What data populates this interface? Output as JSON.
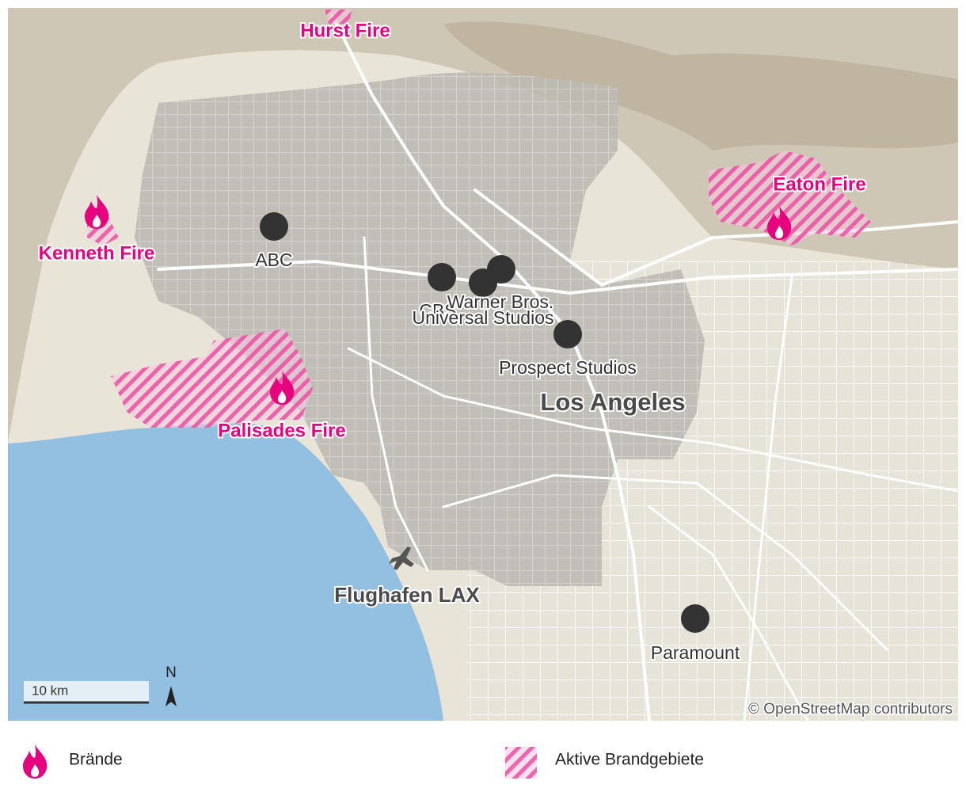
{
  "map": {
    "fires": [
      "Hurst Fire",
      "Kenneth Fire",
      "Eaton Fire",
      "Palisades Fire"
    ],
    "studios": [
      "ABC",
      "CBS",
      "Warner Bros.",
      "Universal Studios",
      "Prospect Studios",
      "Paramount"
    ],
    "city": "Los Angeles",
    "airport": "Flughafen LAX",
    "scale": "10 km",
    "north": "N",
    "attribution": "© OpenStreetMap contributors"
  },
  "legend": {
    "items": [
      "Brände",
      "Aktive Brandgebiete"
    ]
  }
}
